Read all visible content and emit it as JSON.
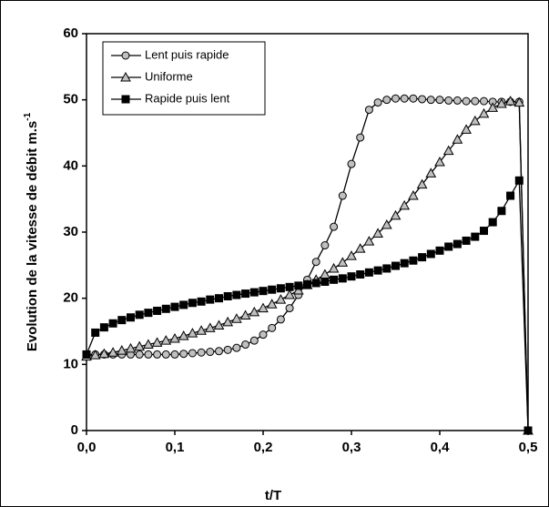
{
  "chart_data": {
    "type": "line",
    "ylabel": "Evolution de la vitesse de débit m.s",
    "ylabel_sup": "-1",
    "xlabel": "t/T",
    "x": [
      0,
      0.01,
      0.02,
      0.03,
      0.04,
      0.05,
      0.06,
      0.07,
      0.08,
      0.09,
      0.1,
      0.11,
      0.12,
      0.13,
      0.14,
      0.15,
      0.16,
      0.17,
      0.18,
      0.19,
      0.2,
      0.21,
      0.22,
      0.23,
      0.24,
      0.25,
      0.26,
      0.27,
      0.28,
      0.29,
      0.3,
      0.31,
      0.32,
      0.33,
      0.34,
      0.35,
      0.36,
      0.37,
      0.38,
      0.39,
      0.4,
      0.41,
      0.42,
      0.43,
      0.44,
      0.45,
      0.46,
      0.47,
      0.48,
      0.49,
      0.5
    ],
    "series": [
      {
        "name": "Lent puis rapide",
        "marker": "circle",
        "color": "#c0c0c0",
        "values": [
          11.5,
          11.5,
          11.5,
          11.5,
          11.5,
          11.5,
          11.5,
          11.5,
          11.5,
          11.5,
          11.5,
          11.6,
          11.7,
          11.8,
          11.9,
          12.0,
          12.2,
          12.5,
          13,
          13.6,
          14.5,
          15.5,
          16.8,
          18.5,
          20.5,
          22.8,
          25.5,
          28,
          30.8,
          35.5,
          40.3,
          44.3,
          48.5,
          49.6,
          50,
          50.2,
          50.2,
          50.2,
          50.1,
          50,
          50,
          49.9,
          49.9,
          49.8,
          49.8,
          49.8,
          49.7,
          49.7,
          49.7,
          49.7,
          0
        ]
      },
      {
        "name": "Uniforme",
        "marker": "triangle",
        "color": "#c0c0c0",
        "values": [
          11.2,
          11.4,
          11.6,
          11.8,
          12.1,
          12.4,
          12.7,
          13,
          13.3,
          13.6,
          13.9,
          14.3,
          14.7,
          15.1,
          15.5,
          15.9,
          16.4,
          16.9,
          17.4,
          17.9,
          18.5,
          19.1,
          19.8,
          20.5,
          21.2,
          22,
          22.8,
          23.6,
          24.5,
          25.4,
          26.4,
          27.5,
          28.6,
          29.8,
          31.1,
          32.5,
          34,
          35.5,
          37.2,
          38.9,
          40.6,
          42.3,
          44,
          45.5,
          46.8,
          47.9,
          48.8,
          49.4,
          49.8,
          49.6,
          0
        ]
      },
      {
        "name": "Rapide puis lent",
        "marker": "square",
        "color": "#000000",
        "values": [
          11.5,
          14.8,
          15.6,
          16.2,
          16.7,
          17.1,
          17.5,
          17.8,
          18.1,
          18.4,
          18.7,
          19,
          19.3,
          19.5,
          19.8,
          20,
          20.3,
          20.5,
          20.7,
          20.9,
          21.1,
          21.3,
          21.5,
          21.7,
          21.9,
          22.1,
          22.3,
          22.5,
          22.8,
          23,
          23.3,
          23.6,
          23.9,
          24.2,
          24.5,
          24.9,
          25.3,
          25.7,
          26.2,
          26.7,
          27.2,
          27.8,
          28.2,
          28.7,
          29.3,
          30.2,
          31.5,
          33.2,
          35.5,
          37.8,
          0
        ]
      }
    ],
    "line_color": "#000000",
    "xlim": [
      0,
      0.5
    ],
    "xticks": [
      {
        "value": 0,
        "label": "0,0"
      },
      {
        "value": 0.1,
        "label": "0,1"
      },
      {
        "value": 0.2,
        "label": "0,2"
      },
      {
        "value": 0.3,
        "label": "0,3"
      },
      {
        "value": 0.4,
        "label": "0,4"
      },
      {
        "value": 0.5,
        "label": "0,5"
      }
    ],
    "ylim": [
      0,
      60
    ],
    "yticks": [
      0,
      10,
      20,
      30,
      40,
      50,
      60
    ],
    "grid": false,
    "legend": "upper left"
  }
}
